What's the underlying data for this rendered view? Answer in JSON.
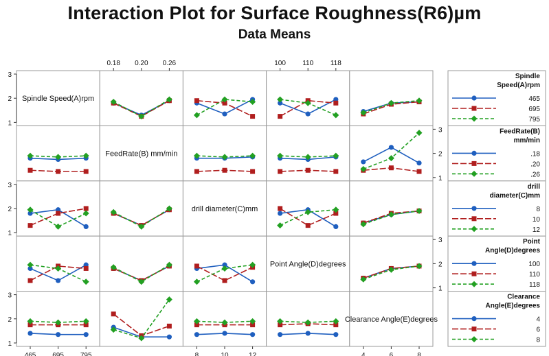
{
  "chart_data": {
    "type": "line",
    "title": "Interaction Plot for Surface Roughness(R6)µm",
    "subtitle": "Data Means",
    "colors": [
      "#1f5fbf",
      "#b01e1e",
      "#22a022"
    ],
    "factors": [
      {
        "name": "Spindle Speed(A)rpm",
        "levels": [
          "465",
          "695",
          "795"
        ]
      },
      {
        "name": "FeedRate(B) mm/min",
        "levels": [
          "0.18",
          "0.20",
          "0.26"
        ]
      },
      {
        "name": "drill diameter(C)mm",
        "levels": [
          "8",
          "10",
          "12"
        ]
      },
      {
        "name": "Point Angle(D)degrees",
        "levels": [
          "100",
          "110",
          "118"
        ]
      },
      {
        "name": "Clearance Angle(E)degrees",
        "levels": [
          "4",
          "6",
          "8"
        ]
      }
    ],
    "ylim": [
      1,
      3
    ],
    "yticks": [
      "1",
      "2",
      "3"
    ],
    "legend": [
      {
        "title": [
          "Spindle",
          "Speed(A)rpm"
        ],
        "entries": [
          "465",
          "695",
          "795"
        ]
      },
      {
        "title": [
          "FeedRate(B)",
          "mm/min"
        ],
        "entries": [
          ".18",
          ".20",
          ".26"
        ]
      },
      {
        "title": [
          "drill",
          "diameter(C)mm"
        ],
        "entries": [
          "8",
          "10",
          "12"
        ]
      },
      {
        "title": [
          "Point",
          "Angle(D)degrees"
        ],
        "entries": [
          "100",
          "110",
          "118"
        ]
      },
      {
        "title": [
          "Clearance",
          "Angle(E)degrees"
        ],
        "entries": [
          "4",
          "6",
          "8"
        ]
      }
    ],
    "panels": [
      {
        "row": 0,
        "col": 1,
        "series": [
          [
            1.8,
            1.3,
            1.9
          ],
          [
            1.8,
            1.25,
            1.9
          ],
          [
            1.85,
            1.25,
            1.95
          ]
        ]
      },
      {
        "row": 0,
        "col": 2,
        "series": [
          [
            1.8,
            1.35,
            1.95
          ],
          [
            1.9,
            1.8,
            1.25
          ],
          [
            1.3,
            1.95,
            1.85
          ]
        ]
      },
      {
        "row": 0,
        "col": 3,
        "series": [
          [
            1.8,
            1.35,
            1.95
          ],
          [
            1.25,
            1.9,
            1.8
          ],
          [
            1.95,
            1.8,
            1.3
          ]
        ]
      },
      {
        "row": 0,
        "col": 4,
        "series": [
          [
            1.45,
            1.8,
            1.85
          ],
          [
            1.35,
            1.75,
            1.85
          ],
          [
            1.4,
            1.8,
            1.9
          ]
        ]
      },
      {
        "row": 1,
        "col": 0,
        "series": [
          [
            1.8,
            1.75,
            1.8
          ],
          [
            1.3,
            1.25,
            1.25
          ],
          [
            1.9,
            1.85,
            1.9
          ]
        ]
      },
      {
        "row": 1,
        "col": 2,
        "series": [
          [
            1.8,
            1.8,
            1.85
          ],
          [
            1.25,
            1.3,
            1.25
          ],
          [
            1.9,
            1.85,
            1.9
          ]
        ]
      },
      {
        "row": 1,
        "col": 3,
        "series": [
          [
            1.8,
            1.75,
            1.85
          ],
          [
            1.25,
            1.3,
            1.25
          ],
          [
            1.9,
            1.85,
            1.9
          ]
        ]
      },
      {
        "row": 1,
        "col": 4,
        "series": [
          [
            1.65,
            2.25,
            1.6
          ],
          [
            1.3,
            1.4,
            1.25
          ],
          [
            1.35,
            1.8,
            2.85
          ]
        ]
      },
      {
        "row": 2,
        "col": 0,
        "series": [
          [
            1.8,
            1.95,
            1.25
          ],
          [
            1.3,
            1.8,
            2.0
          ],
          [
            1.95,
            1.25,
            1.8
          ]
        ]
      },
      {
        "row": 2,
        "col": 1,
        "series": [
          [
            1.8,
            1.3,
            1.95
          ],
          [
            1.8,
            1.3,
            1.95
          ],
          [
            1.85,
            1.25,
            2.0
          ]
        ]
      },
      {
        "row": 2,
        "col": 3,
        "series": [
          [
            1.8,
            1.95,
            1.25
          ],
          [
            2.0,
            1.3,
            1.8
          ],
          [
            1.3,
            1.85,
            1.95
          ]
        ]
      },
      {
        "row": 2,
        "col": 4,
        "series": [
          [
            1.4,
            1.75,
            1.9
          ],
          [
            1.4,
            1.8,
            1.9
          ],
          [
            1.35,
            1.75,
            1.9
          ]
        ]
      },
      {
        "row": 3,
        "col": 0,
        "series": [
          [
            1.8,
            1.3,
            1.95
          ],
          [
            1.3,
            1.9,
            1.8
          ],
          [
            1.95,
            1.8,
            1.25
          ]
        ]
      },
      {
        "row": 3,
        "col": 1,
        "series": [
          [
            1.8,
            1.3,
            1.9
          ],
          [
            1.8,
            1.3,
            1.9
          ],
          [
            1.85,
            1.25,
            1.95
          ]
        ]
      },
      {
        "row": 3,
        "col": 2,
        "series": [
          [
            1.8,
            1.95,
            1.25
          ],
          [
            1.9,
            1.3,
            1.85
          ],
          [
            1.25,
            1.8,
            1.95
          ]
        ]
      },
      {
        "row": 3,
        "col": 4,
        "series": [
          [
            1.4,
            1.8,
            1.9
          ],
          [
            1.4,
            1.8,
            1.9
          ],
          [
            1.35,
            1.75,
            1.9
          ]
        ]
      },
      {
        "row": 4,
        "col": 0,
        "series": [
          [
            1.4,
            1.35,
            1.35
          ],
          [
            1.75,
            1.75,
            1.75
          ],
          [
            1.9,
            1.85,
            1.9
          ]
        ]
      },
      {
        "row": 4,
        "col": 1,
        "series": [
          [
            1.65,
            1.25,
            1.25
          ],
          [
            2.2,
            1.3,
            1.7
          ],
          [
            1.55,
            1.2,
            2.8
          ]
        ]
      },
      {
        "row": 4,
        "col": 2,
        "series": [
          [
            1.35,
            1.4,
            1.35
          ],
          [
            1.75,
            1.75,
            1.75
          ],
          [
            1.9,
            1.85,
            1.9
          ]
        ]
      },
      {
        "row": 4,
        "col": 3,
        "series": [
          [
            1.35,
            1.4,
            1.35
          ],
          [
            1.75,
            1.8,
            1.75
          ],
          [
            1.9,
            1.85,
            1.9
          ]
        ]
      }
    ]
  }
}
